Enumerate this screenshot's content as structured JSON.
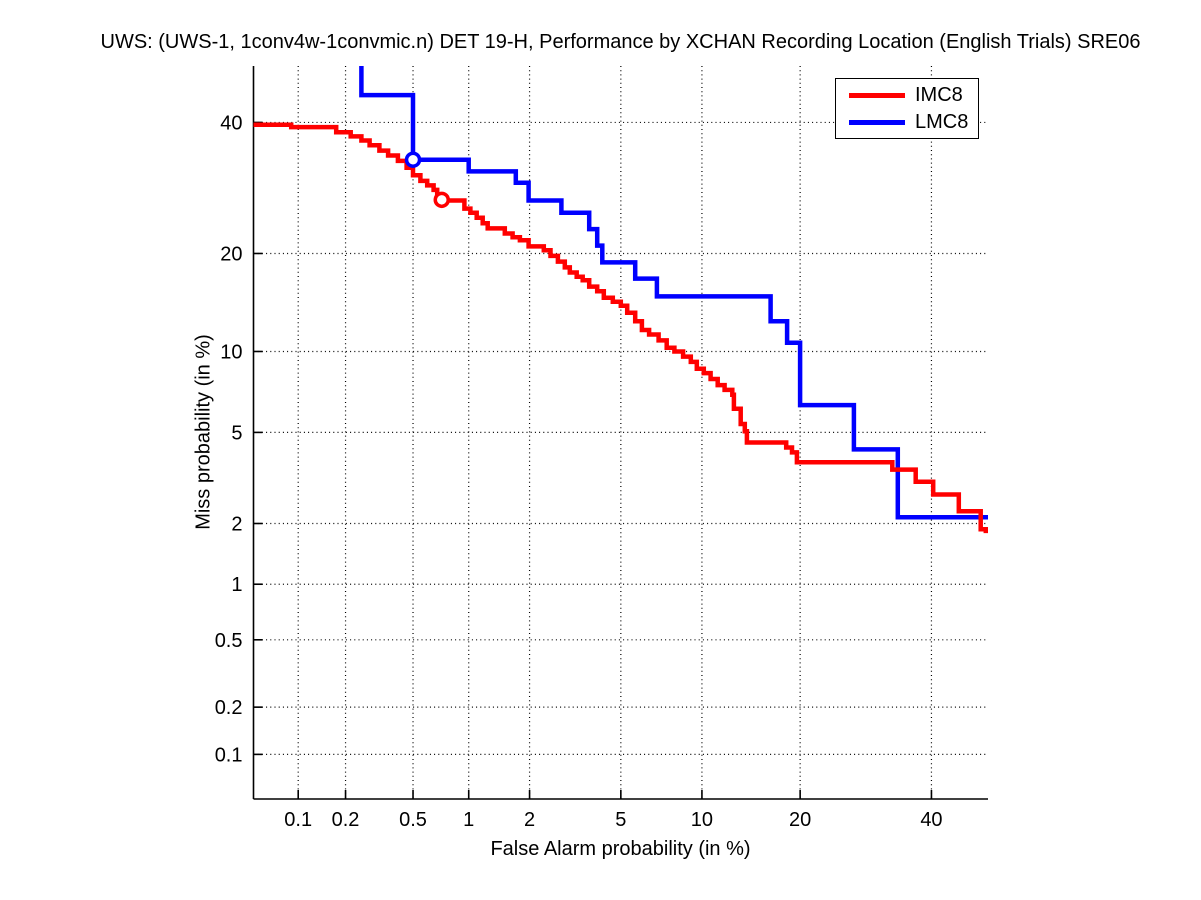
{
  "chart_data": {
    "type": "line",
    "subtype": "DET curve, step interpolation, normal-deviate (probit) scale on both axes",
    "title": "UWS: (UWS-1, 1conv4w-1convmic.n) DET 19-H,  Performance by XCHAN Recording Location (English Trials) SRE06",
    "xlabel": "False Alarm probability (in %)",
    "ylabel": "Miss probability (in %)",
    "axes": {
      "x_min_pct": 0.05,
      "x_max_pct": 50,
      "y_min_pct": 0.05,
      "y_max_pct": 50,
      "scale": "normal-deviate"
    },
    "grid": "dotted",
    "x_ticks": {
      "values_pct": [
        0.1,
        0.2,
        0.5,
        1,
        2,
        5,
        10,
        20,
        40
      ],
      "labels": [
        "0.1",
        "0.2",
        "0.5",
        "1",
        "2",
        "5",
        "10",
        "20",
        "40"
      ]
    },
    "y_ticks": {
      "values_pct": [
        0.1,
        0.2,
        0.5,
        1,
        2,
        5,
        10,
        20,
        40
      ],
      "labels": [
        "0.1",
        "0.2",
        "0.5",
        "1",
        "2",
        "5",
        "10",
        "20",
        "40"
      ]
    },
    "legend": {
      "position": "top-right-inside",
      "entries": [
        "IMC8",
        "LMC8"
      ]
    },
    "series": [
      {
        "name": "IMC8",
        "color": "#ff0000",
        "operating_point_fa_miss_pct": [
          0.72,
          27.4
        ],
        "points_fa_miss_pct": [
          [
            0.048,
            39.6
          ],
          [
            0.09,
            39.2
          ],
          [
            0.175,
            38.3
          ],
          [
            0.215,
            37.6
          ],
          [
            0.25,
            36.9
          ],
          [
            0.28,
            36.1
          ],
          [
            0.32,
            35.2
          ],
          [
            0.36,
            34.4
          ],
          [
            0.41,
            33.5
          ],
          [
            0.46,
            32.4
          ],
          [
            0.5,
            31.2
          ],
          [
            0.55,
            30.3
          ],
          [
            0.6,
            29.6
          ],
          [
            0.65,
            28.9
          ],
          [
            0.68,
            28.2
          ],
          [
            0.72,
            27.3
          ],
          [
            0.95,
            26.1
          ],
          [
            1.02,
            25.5
          ],
          [
            1.1,
            24.8
          ],
          [
            1.18,
            24.0
          ],
          [
            1.25,
            23.3
          ],
          [
            1.52,
            22.6
          ],
          [
            1.66,
            22.1
          ],
          [
            1.8,
            21.7
          ],
          [
            1.98,
            20.9
          ],
          [
            2.33,
            20.4
          ],
          [
            2.5,
            19.7
          ],
          [
            2.7,
            19.0
          ],
          [
            2.9,
            18.3
          ],
          [
            3.05,
            17.7
          ],
          [
            3.27,
            17.2
          ],
          [
            3.47,
            16.8
          ],
          [
            3.7,
            16.1
          ],
          [
            4.0,
            15.6
          ],
          [
            4.26,
            14.9
          ],
          [
            4.64,
            14.5
          ],
          [
            5.0,
            14.1
          ],
          [
            5.3,
            13.4
          ],
          [
            5.7,
            12.6
          ],
          [
            6.05,
            11.8
          ],
          [
            6.45,
            11.4
          ],
          [
            7.0,
            10.9
          ],
          [
            7.5,
            10.3
          ],
          [
            8.0,
            10.0
          ],
          [
            8.6,
            9.6
          ],
          [
            9.15,
            9.2
          ],
          [
            9.6,
            8.7
          ],
          [
            10.15,
            8.4
          ],
          [
            10.7,
            8.0
          ],
          [
            11.3,
            7.6
          ],
          [
            11.9,
            7.3
          ],
          [
            12.6,
            7.0
          ],
          [
            12.75,
            6.2
          ],
          [
            13.4,
            5.4
          ],
          [
            13.8,
            5.05
          ],
          [
            14.0,
            4.55
          ],
          [
            18.3,
            4.34
          ],
          [
            19.0,
            4.14
          ],
          [
            19.6,
            3.76
          ],
          [
            33.4,
            3.5
          ],
          [
            37.3,
            3.1
          ],
          [
            40.3,
            2.72
          ],
          [
            44.8,
            2.28
          ],
          [
            48.7,
            1.88
          ],
          [
            49.6,
            1.8
          ]
        ]
      },
      {
        "name": "LMC8",
        "color": "#0000ff",
        "operating_point_fa_miss_pct": [
          0.5,
          33.7
        ],
        "points_fa_miss_pct": [
          [
            0.25,
            50.3
          ],
          [
            0.25,
            44.8
          ],
          [
            0.5,
            33.7
          ],
          [
            1.0,
            31.8
          ],
          [
            1.72,
            30.0
          ],
          [
            1.98,
            27.3
          ],
          [
            2.8,
            25.5
          ],
          [
            3.7,
            23.2
          ],
          [
            4.0,
            21.0
          ],
          [
            4.2,
            18.9
          ],
          [
            5.7,
            17.0
          ],
          [
            6.9,
            15.05
          ],
          [
            16.5,
            12.6
          ],
          [
            18.4,
            10.7
          ],
          [
            20.0,
            6.4
          ],
          [
            27.4,
            4.26
          ],
          [
            34.3,
            2.14
          ],
          [
            50.0,
            2.14
          ]
        ]
      }
    ]
  }
}
